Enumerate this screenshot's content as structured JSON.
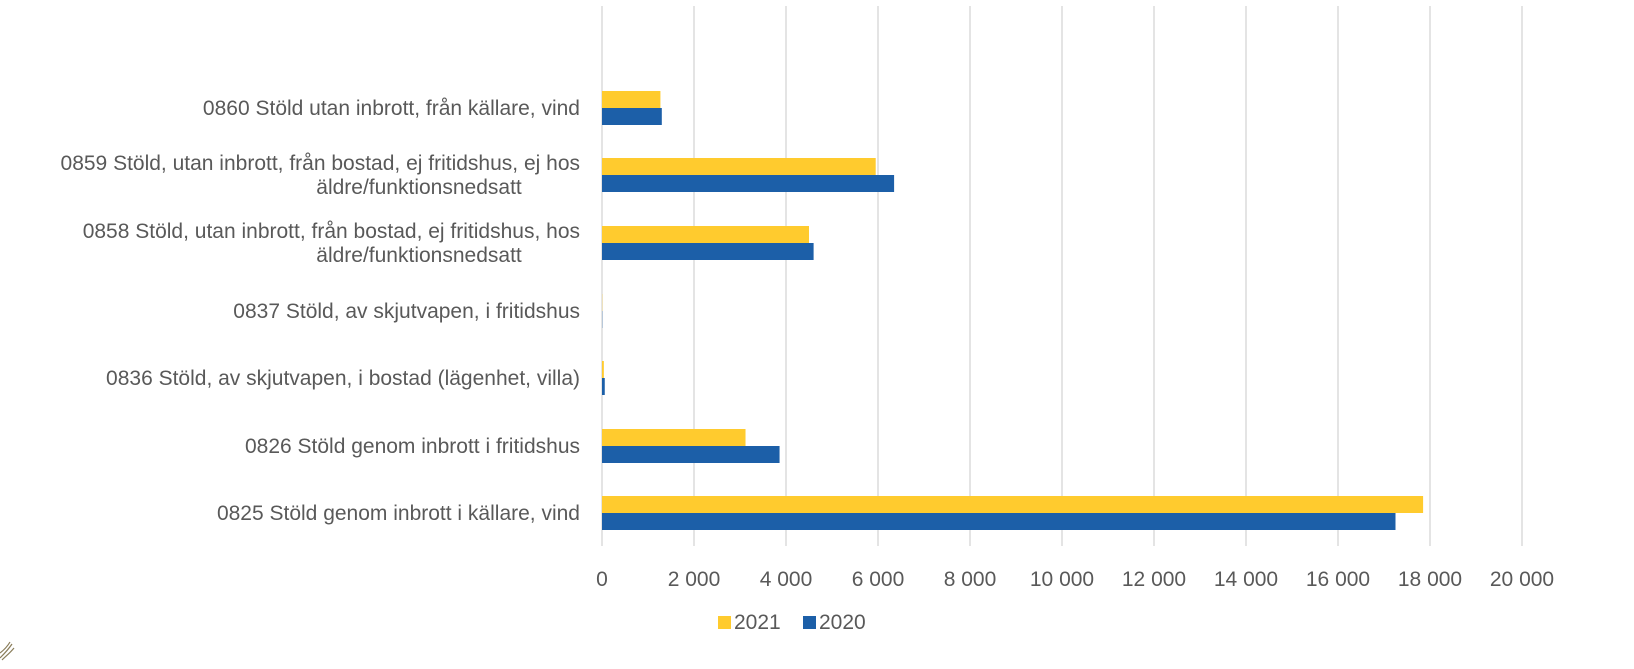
{
  "chart_data": {
    "type": "bar",
    "orientation": "horizontal",
    "categories": [
      "0825 Stöld genom inbrott i källare, vind",
      "0826 Stöld genom inbrott i fritidshus",
      "0836 Stöld, av skjutvapen, i bostad (lägenhet, villa)",
      "0837 Stöld, av skjutvapen, i fritidshus",
      "0858 Stöld, utan inbrott, från bostad, ej fritidshus, hos äldre/funktionsnedsatt",
      "0859 Stöld, utan inbrott, från bostad, ej fritidshus, ej hos äldre/funktionsnedsatt",
      "0860 Stöld utan inbrott, från källare, vind"
    ],
    "category_lines": [
      [
        "0825 Stöld genom inbrott i källare, vind"
      ],
      [
        "0826 Stöld genom inbrott i fritidshus"
      ],
      [
        "0836 Stöld, av skjutvapen, i bostad (lägenhet, villa)"
      ],
      [
        "0837 Stöld, av skjutvapen, i fritidshus"
      ],
      [
        "0858 Stöld, utan inbrott, från bostad, ej fritidshus, hos",
        "äldre/funktionsnedsatt"
      ],
      [
        "0859 Stöld, utan inbrott, från bostad, ej fritidshus, ej hos",
        "äldre/funktionsnedsatt"
      ],
      [
        "0860 Stöld utan inbrott, från källare, vind"
      ]
    ],
    "series": [
      {
        "name": "2021",
        "color": "#FFCB2E",
        "values": [
          17850,
          3120,
          40,
          5,
          4500,
          5950,
          1270
        ]
      },
      {
        "name": "2020",
        "color": "#1C5FA8",
        "values": [
          17250,
          3860,
          60,
          5,
          4600,
          6350,
          1300
        ]
      }
    ],
    "x_ticks": [
      0,
      2000,
      4000,
      6000,
      8000,
      10000,
      12000,
      14000,
      16000,
      18000,
      20000
    ],
    "x_tick_labels": [
      "0",
      "2 000",
      "4 000",
      "6 000",
      "8 000",
      "10 000",
      "12 000",
      "14 000",
      "16 000",
      "18 000",
      "20 000"
    ],
    "xlim": [
      0,
      20000
    ],
    "grid": "vertical",
    "grid_color": "#D9D9D9",
    "legend_position": "bottom",
    "title": "",
    "xlabel": "",
    "ylabel": ""
  }
}
